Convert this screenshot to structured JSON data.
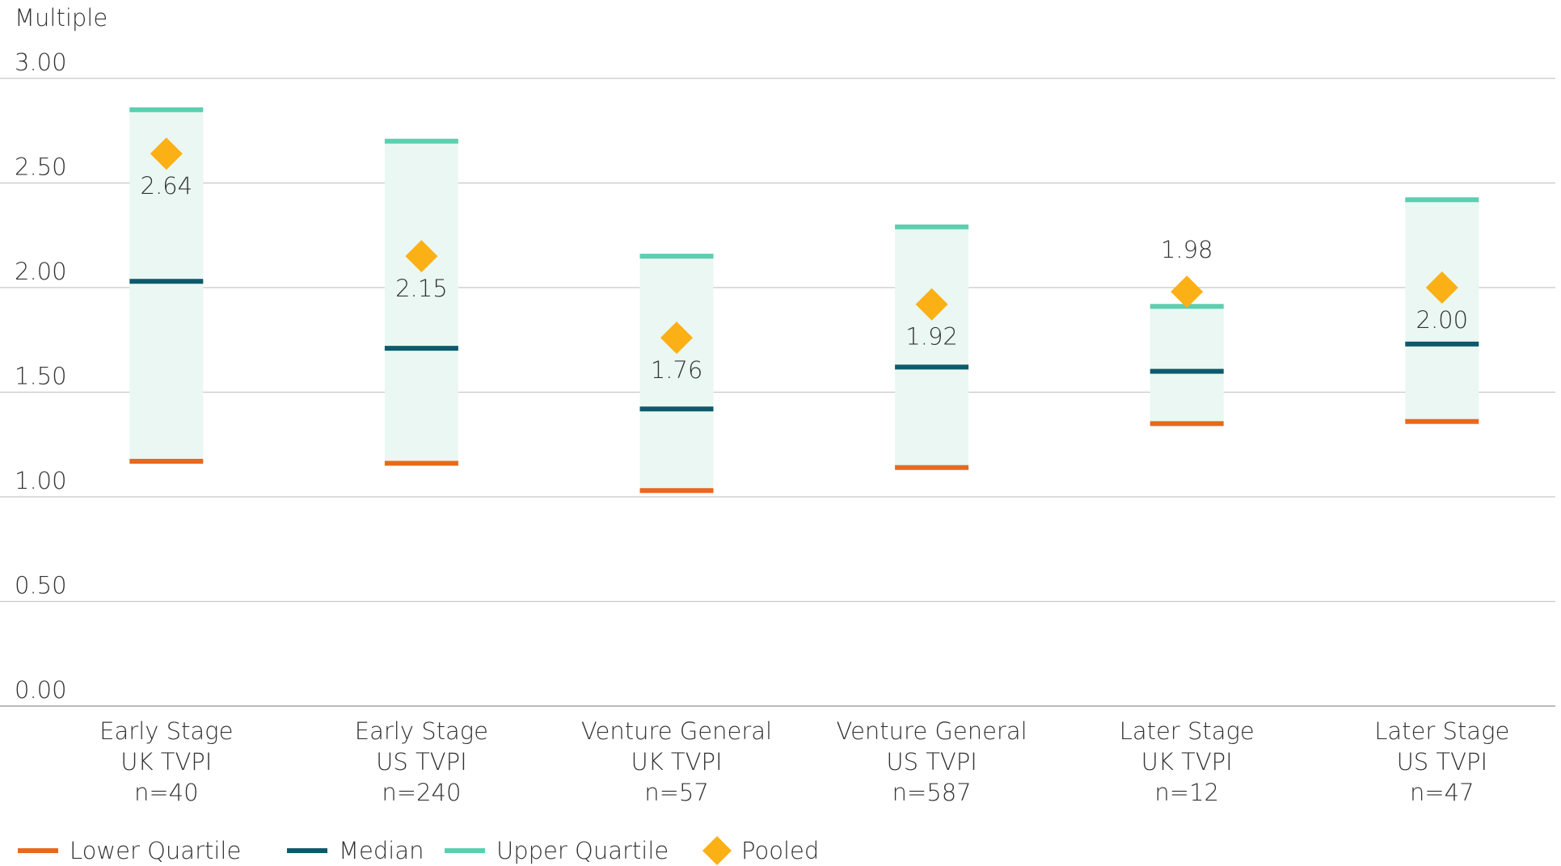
{
  "chart_data": {
    "type": "quartile",
    "y_axis_label": "Multiple",
    "categories": [
      [
        "Early Stage",
        "UK TVPI",
        "n=40"
      ],
      [
        "Early Stage",
        "US TVPI",
        "n=240"
      ],
      [
        "Venture General",
        "UK TVPI",
        "n=57"
      ],
      [
        "Venture General",
        "US TVPI",
        "n=587"
      ],
      [
        "Later Stage",
        "UK TVPI",
        "n=12"
      ],
      [
        "Later Stage",
        "US TVPI",
        "n=47"
      ]
    ],
    "series": [
      {
        "name": "Lower Quartile",
        "color": "#e8691c",
        "values": [
          1.17,
          1.16,
          1.03,
          1.14,
          1.35,
          1.36
        ]
      },
      {
        "name": "Median",
        "color": "#0d5a6b",
        "values": [
          2.03,
          1.71,
          1.42,
          1.62,
          1.6,
          1.73
        ]
      },
      {
        "name": "Upper Quartile",
        "color": "#5ccfb0",
        "values": [
          2.85,
          2.7,
          2.15,
          2.29,
          1.91,
          2.42
        ]
      },
      {
        "name": "Pooled",
        "color": "#fbb016",
        "values": [
          2.64,
          2.15,
          1.76,
          1.92,
          1.98,
          2.0
        ],
        "value_labels": [
          "2.64",
          "2.15",
          "1.76",
          "1.92",
          "1.98",
          "2.00"
        ]
      }
    ],
    "box_color": "#eaf7f3",
    "ylim": [
      0,
      3
    ],
    "yticks": [
      {
        "value": 0,
        "label": "0.00"
      },
      {
        "value": 0.5,
        "label": "0.50"
      },
      {
        "value": 1,
        "label": "1.00"
      },
      {
        "value": 1.5,
        "label": "1.50"
      },
      {
        "value": 2,
        "label": "2.00"
      },
      {
        "value": 2.5,
        "label": "2.50"
      },
      {
        "value": 3,
        "label": "3.00"
      }
    ],
    "grid": true
  }
}
